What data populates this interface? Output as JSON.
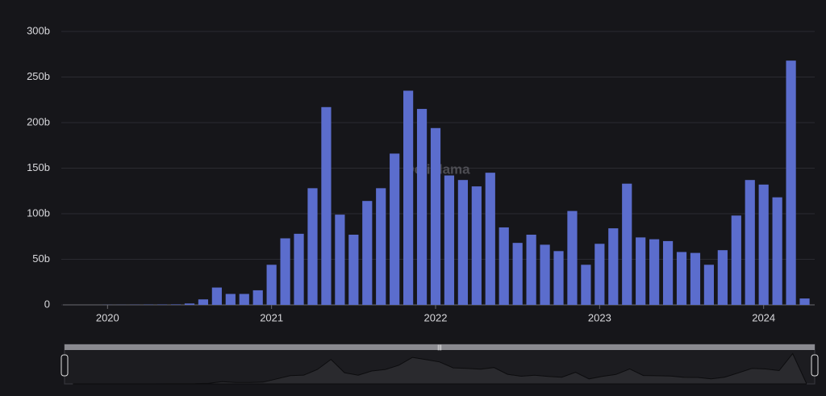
{
  "chart_data": {
    "type": "bar",
    "watermark": "DefiLlama",
    "categories": [
      null,
      null,
      null,
      "2020",
      null,
      null,
      null,
      null,
      null,
      null,
      null,
      null,
      null,
      null,
      null,
      "2021",
      null,
      null,
      null,
      null,
      null,
      null,
      null,
      null,
      null,
      null,
      null,
      "2022",
      null,
      null,
      null,
      null,
      null,
      null,
      null,
      null,
      null,
      null,
      null,
      "2023",
      null,
      null,
      null,
      null,
      null,
      null,
      null,
      null,
      null,
      null,
      null,
      "2024",
      null,
      null,
      null
    ],
    "values": [
      0,
      0,
      0,
      0.1,
      0.1,
      0.2,
      0.3,
      0.4,
      0.5,
      1.5,
      6,
      19,
      12,
      12,
      16,
      44,
      73,
      78,
      128,
      217,
      99,
      77,
      114,
      128,
      166,
      235,
      215,
      194,
      142,
      137,
      130,
      145,
      85,
      68,
      77,
      66,
      59,
      103,
      44,
      67,
      84,
      133,
      74,
      72,
      70,
      58,
      57,
      44,
      60,
      98,
      137,
      132,
      118,
      268,
      7
    ],
    "color": "#5b6dcd",
    "ylim": [
      0,
      300
    ],
    "yticks": [
      {
        "value": 0,
        "label": "0"
      },
      {
        "value": 50,
        "label": "50b"
      },
      {
        "value": 100,
        "label": "100b"
      },
      {
        "value": 150,
        "label": "150b"
      },
      {
        "value": 200,
        "label": "200b"
      },
      {
        "value": 250,
        "label": "250b"
      },
      {
        "value": 300,
        "label": "300b"
      }
    ],
    "grid": true
  }
}
